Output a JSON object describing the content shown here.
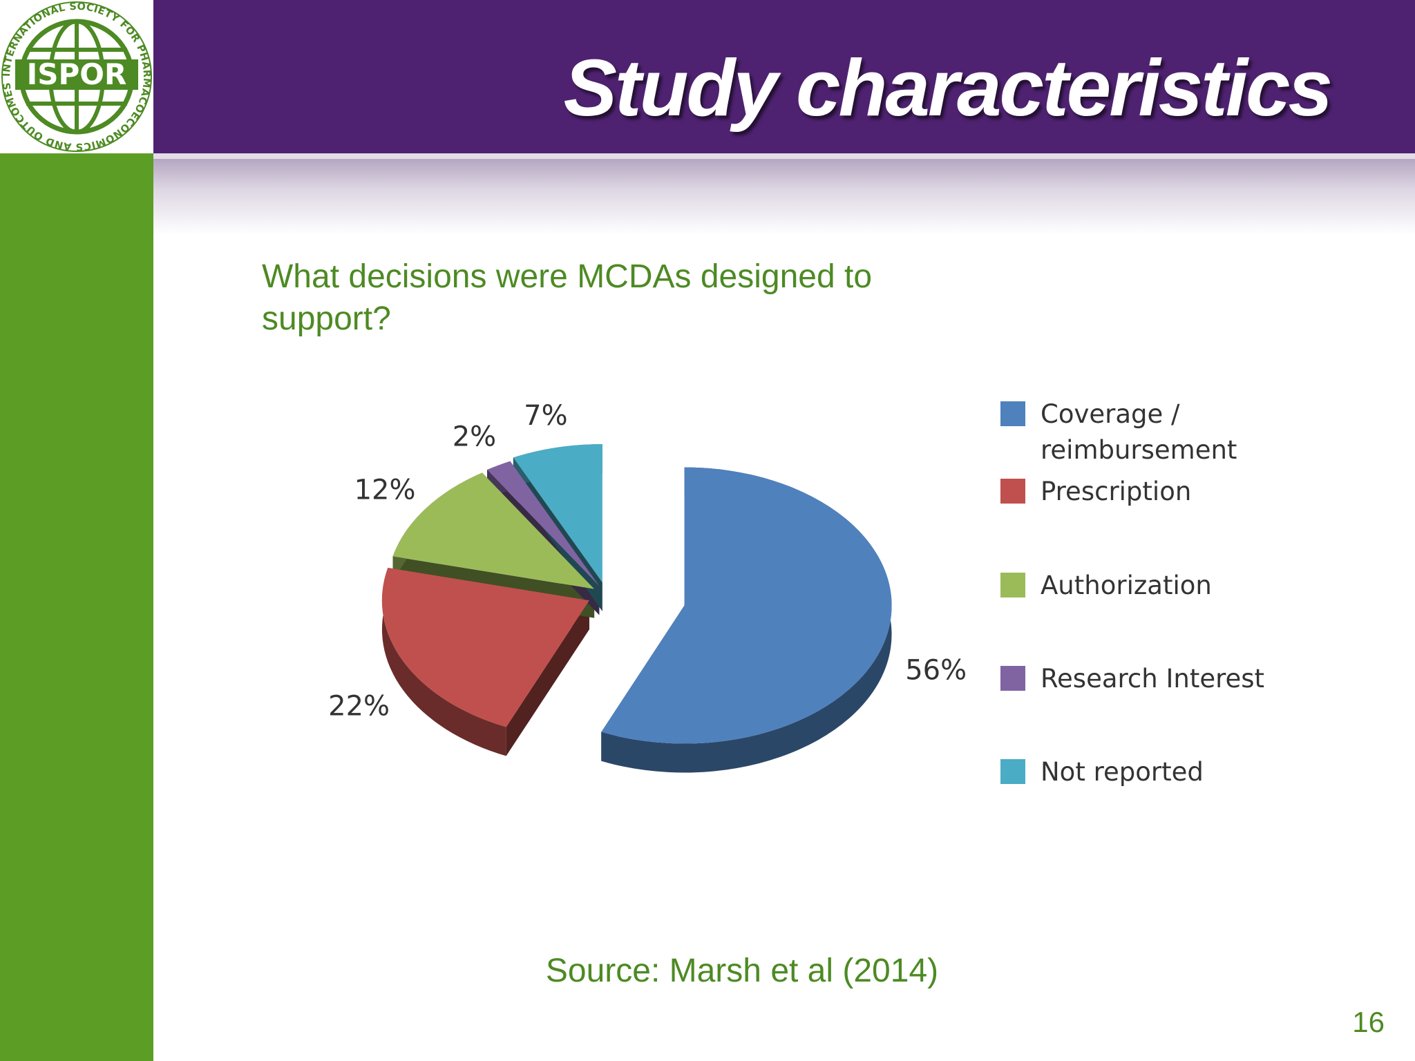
{
  "slide": {
    "title": "Study characteristics",
    "question": "What decisions were MCDAs designed to support?",
    "source": "Source: Marsh et al (2014)",
    "page_number": "16"
  },
  "logo": {
    "text": "ISPOR",
    "ring_text": "INTERNATIONAL SOCIETY FOR PHARMACOECONOMICS AND OUTCOMES RESEARCH•"
  },
  "colors": {
    "header": "#4e2270",
    "sidebar": "#5c9d26",
    "accent_text": "#4d8a23"
  },
  "chart_data": {
    "type": "pie",
    "style": "3d-exploded",
    "legend_position": "right",
    "slices": [
      {
        "label": "Coverage / reimbursement",
        "legend_lines": [
          "Coverage /",
          "reimbursement"
        ],
        "value": 56,
        "value_label": "56%",
        "color": "#4f81bd"
      },
      {
        "label": "Prescription",
        "legend_lines": [
          "Prescription"
        ],
        "value": 22,
        "value_label": "22%",
        "color": "#c0504d"
      },
      {
        "label": "Authorization",
        "legend_lines": [
          "Authorization"
        ],
        "value": 12,
        "value_label": "12%",
        "color": "#9bbb59"
      },
      {
        "label": "Research Interest",
        "legend_lines": [
          "Research Interest"
        ],
        "value": 2,
        "value_label": "2%",
        "color": "#8064a2"
      },
      {
        "label": "Not reported",
        "legend_lines": [
          "Not reported"
        ],
        "value": 7,
        "value_label": "7%",
        "color": "#4bacc6"
      }
    ]
  }
}
